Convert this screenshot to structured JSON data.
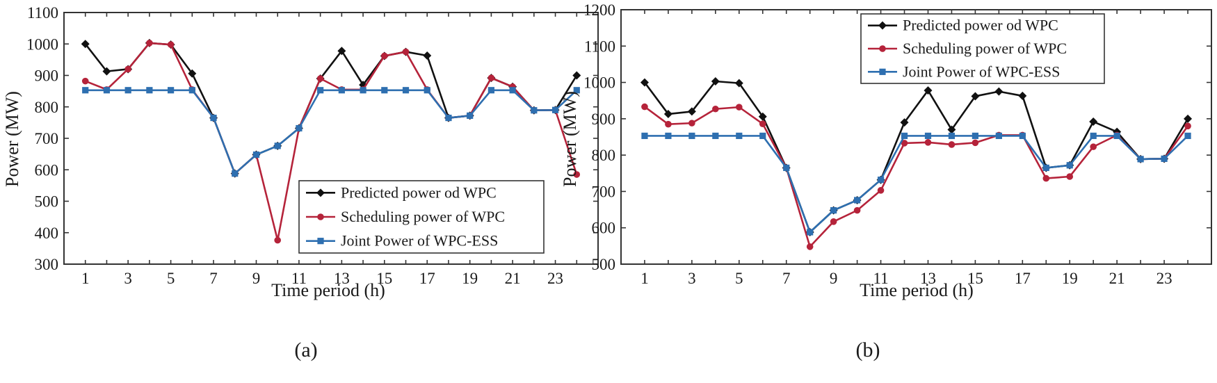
{
  "chart_data": [
    {
      "id": "a",
      "type": "line",
      "caption": "(a)",
      "xlabel": "Time period (h)",
      "ylabel": "Power (MW)",
      "xlim": [
        0,
        25
      ],
      "ylim": [
        300,
        1100
      ],
      "xticks": [
        1,
        3,
        5,
        7,
        9,
        11,
        13,
        15,
        17,
        19,
        21,
        23
      ],
      "yticks": [
        300,
        400,
        500,
        600,
        700,
        800,
        900,
        1000,
        1100
      ],
      "legend_position": "lower-right",
      "x": [
        1,
        2,
        3,
        4,
        5,
        6,
        7,
        8,
        9,
        10,
        11,
        12,
        13,
        14,
        15,
        16,
        17,
        18,
        19,
        20,
        21,
        22,
        23,
        24
      ],
      "series": [
        {
          "name": "Predicted power od WPC",
          "color": "#111111",
          "marker": "diamond",
          "values": [
            1000,
            913,
            920,
            1003,
            998,
            906,
            765,
            588,
            648,
            676,
            732,
            890,
            978,
            870,
            962,
            975,
            963,
            765,
            772,
            892,
            864,
            789,
            790,
            900
          ]
        },
        {
          "name": "Scheduling power of WPC",
          "color": "#b5233a",
          "marker": "circle",
          "values": [
            882,
            855,
            920,
            1003,
            998,
            855,
            765,
            588,
            648,
            376,
            732,
            890,
            855,
            855,
            962,
            975,
            855,
            765,
            772,
            892,
            864,
            789,
            790,
            585
          ]
        },
        {
          "name": "Joint Power of WPC-ESS",
          "color": "#2e6fb0",
          "marker": "square",
          "values": [
            853,
            853,
            853,
            853,
            853,
            853,
            765,
            588,
            648,
            676,
            732,
            853,
            853,
            853,
            853,
            853,
            853,
            765,
            772,
            853,
            853,
            789,
            790,
            853
          ]
        }
      ]
    },
    {
      "id": "b",
      "type": "line",
      "caption": "(b)",
      "xlabel": "Time period (h)",
      "ylabel": "Power (MW)",
      "xlim": [
        0,
        25
      ],
      "ylim": [
        500,
        1200
      ],
      "xticks": [
        1,
        3,
        5,
        7,
        9,
        11,
        13,
        15,
        17,
        19,
        21,
        23
      ],
      "yticks": [
        500,
        600,
        700,
        800,
        900,
        1000,
        1100,
        1200
      ],
      "legend_position": "top-right",
      "x": [
        1,
        2,
        3,
        4,
        5,
        6,
        7,
        8,
        9,
        10,
        11,
        12,
        13,
        14,
        15,
        16,
        17,
        18,
        19,
        20,
        21,
        22,
        23,
        24
      ],
      "series": [
        {
          "name": "Predicted power od WPC",
          "color": "#111111",
          "marker": "diamond",
          "values": [
            1000,
            913,
            920,
            1003,
            998,
            906,
            765,
            588,
            648,
            676,
            732,
            890,
            978,
            870,
            962,
            975,
            963,
            765,
            772,
            892,
            864,
            789,
            790,
            900
          ]
        },
        {
          "name": "Scheduling power of WPC",
          "color": "#b5233a",
          "marker": "circle",
          "values": [
            933,
            885,
            888,
            927,
            932,
            886,
            765,
            548,
            617,
            648,
            703,
            833,
            835,
            829,
            834,
            855,
            855,
            736,
            741,
            823,
            855,
            789,
            790,
            880
          ]
        },
        {
          "name": "Joint Power of WPC-ESS",
          "color": "#2e6fb0",
          "marker": "square",
          "values": [
            853,
            853,
            853,
            853,
            853,
            853,
            765,
            588,
            648,
            676,
            732,
            853,
            853,
            853,
            853,
            853,
            853,
            765,
            772,
            853,
            853,
            789,
            790,
            853
          ]
        }
      ]
    }
  ]
}
